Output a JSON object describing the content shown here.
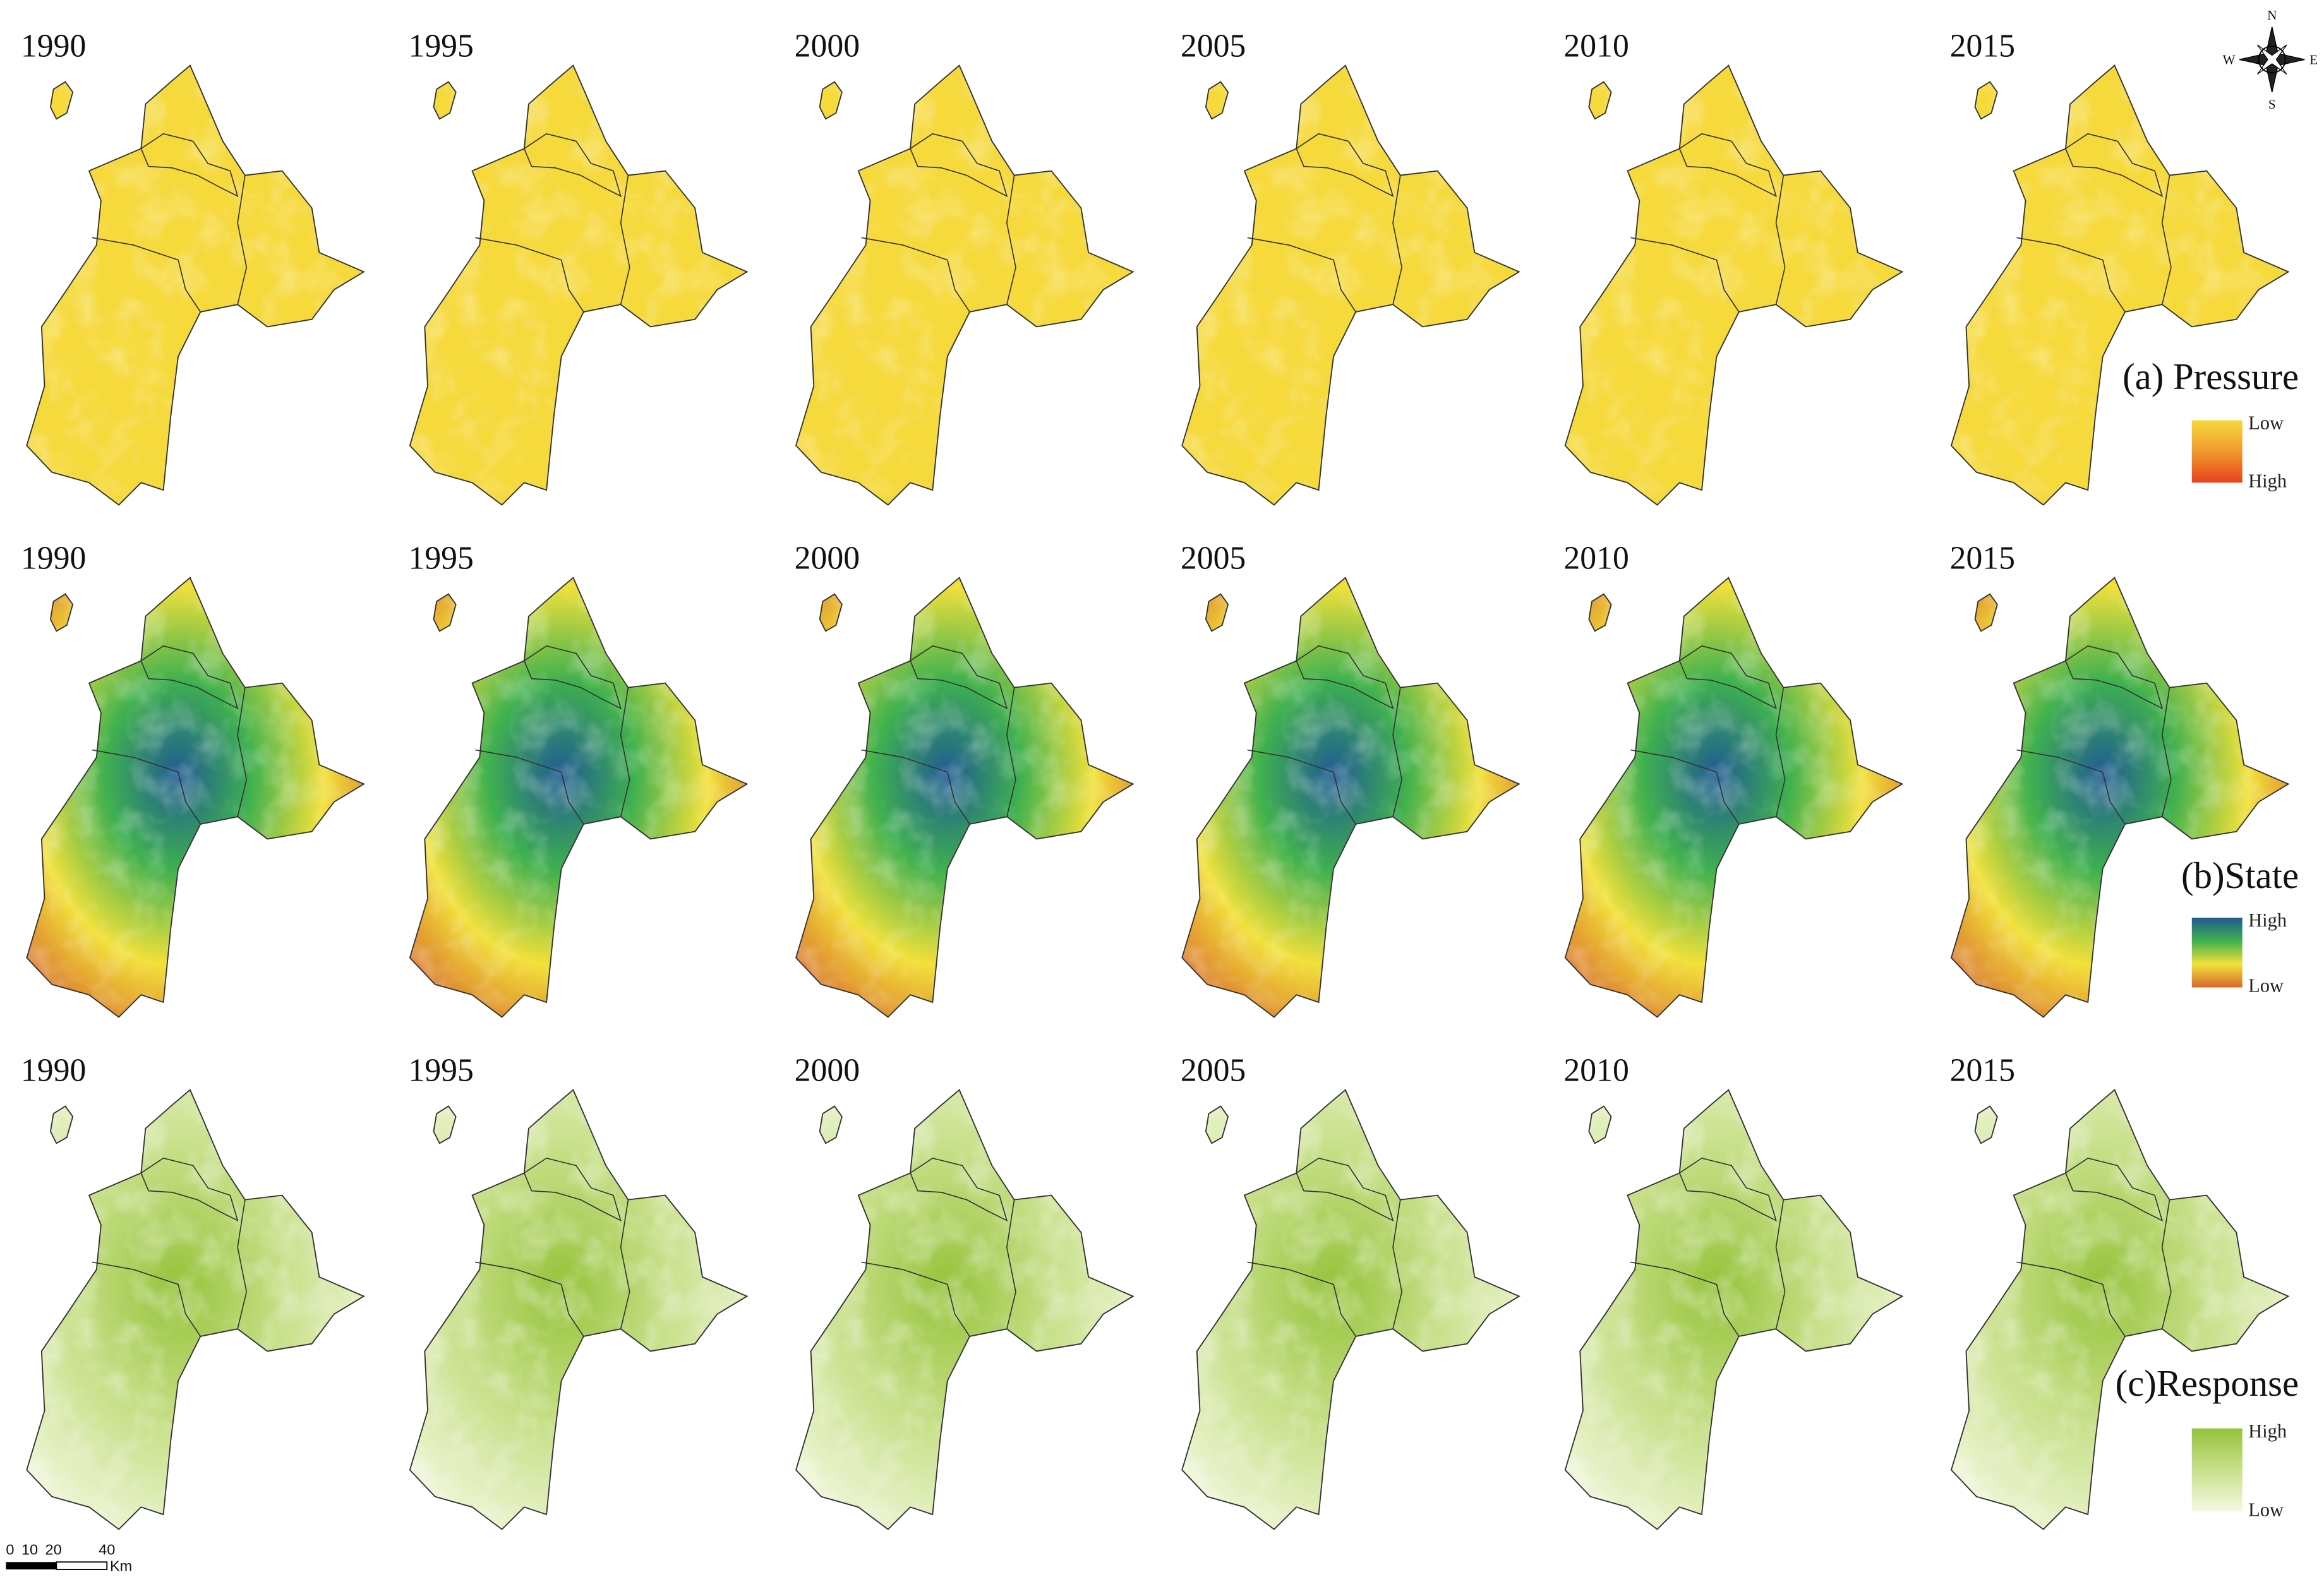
{
  "figure": {
    "rows": [
      {
        "title": "(a) Pressure",
        "years": [
          "1990",
          "1995",
          "2000",
          "2005",
          "2010",
          "2015"
        ],
        "legend": {
          "top": "Low",
          "bottom": "High"
        },
        "colors": [
          "#f6d93a",
          "#ef9a2c",
          "#e8421c"
        ]
      },
      {
        "title": "(b)State",
        "years": [
          "1990",
          "1995",
          "2000",
          "2005",
          "2010",
          "2015"
        ],
        "legend": {
          "top": "High",
          "bottom": "Low"
        },
        "colors": [
          "#1f5a93",
          "#3fb14e",
          "#f2e13a",
          "#d8682a"
        ]
      },
      {
        "title": "(c)Response",
        "years": [
          "1990",
          "1995",
          "2000",
          "2005",
          "2010",
          "2015"
        ],
        "legend": {
          "top": "High",
          "bottom": "Low"
        },
        "colors": [
          "#95c33a",
          "#c8e08a",
          "#f4f9e2"
        ]
      }
    ],
    "compass": {
      "n": "N",
      "s": "S",
      "e": "E",
      "w": "W"
    },
    "scale_bar": {
      "ticks": [
        "0",
        "10",
        "20",
        "40"
      ],
      "unit": "Km"
    }
  }
}
